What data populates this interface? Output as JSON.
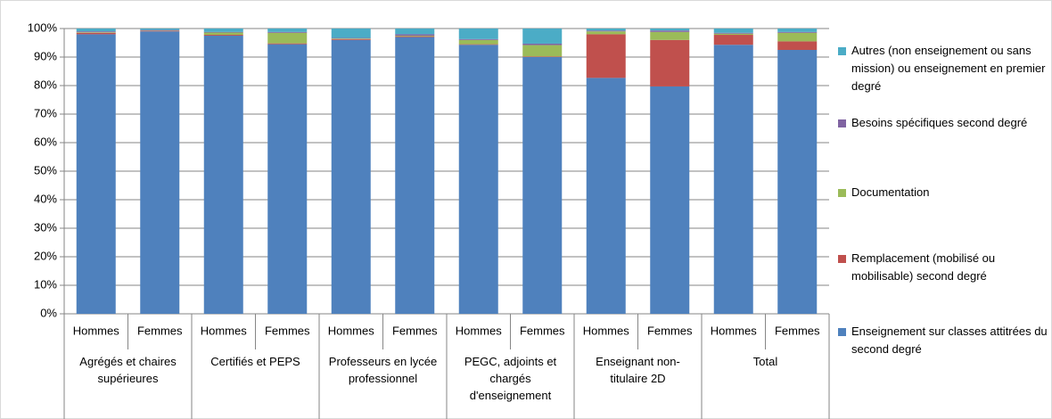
{
  "chart_data": {
    "type": "stacked_bar",
    "categories": [
      "Hommes",
      "Femmes",
      "Hommes",
      "Femmes",
      "Hommes",
      "Femmes",
      "Hommes",
      "Femmes",
      "Hommes",
      "Femmes",
      "Hommes",
      "Femmes"
    ],
    "groups": [
      "Agrégés et chaires supérieures",
      "Certifiés et PEPS",
      "Professeurs en lycée professionnel",
      "PEGC, adjoints et chargés d'enseignement",
      "Enseignant non-titulaire 2D",
      "Total"
    ],
    "series": [
      {
        "name": "Enseignement sur classes attitrées du second degré",
        "color": "#4f81bd",
        "values": [
          98,
          99,
          97.5,
          94.5,
          96,
          97,
          94.3,
          90,
          82.7,
          79.7,
          94.3,
          92.5
        ]
      },
      {
        "name": "Remplacement (mobilisé ou mobilisable) second degré",
        "color": "#c0504d",
        "values": [
          0.5,
          0.2,
          0.3,
          0.3,
          0.3,
          0.3,
          0.2,
          0.2,
          15.3,
          16.3,
          3.5,
          3
        ]
      },
      {
        "name": "Documentation",
        "color": "#9bbb59",
        "values": [
          0.2,
          0.1,
          0.8,
          3.7,
          0.2,
          0.2,
          1.5,
          4,
          1,
          2.8,
          0.4,
          3
        ]
      },
      {
        "name": "Besoins spécifiques second degré",
        "color": "#8064a2",
        "values": [
          0.3,
          0.2,
          0.2,
          0.3,
          0.2,
          0.5,
          0.3,
          0.5,
          0.3,
          0.5,
          0.3,
          0.3
        ]
      },
      {
        "name": "Autres (non enseignement ou sans mission) ou enseignement en premier degré",
        "color": "#4bacc6",
        "values": [
          1,
          0.5,
          1.2,
          1.2,
          3.3,
          2,
          3.7,
          5.3,
          0.7,
          0.7,
          1.5,
          1.2
        ]
      }
    ],
    "ylim": [
      0,
      100
    ],
    "yticks": [
      {
        "value": 0,
        "label": "0%"
      },
      {
        "value": 10,
        "label": "10%"
      },
      {
        "value": 20,
        "label": "20%"
      },
      {
        "value": 30,
        "label": "30%"
      },
      {
        "value": 40,
        "label": "40%"
      },
      {
        "value": 50,
        "label": "50%"
      },
      {
        "value": 60,
        "label": "60%"
      },
      {
        "value": 70,
        "label": "70%"
      },
      {
        "value": 80,
        "label": "80%"
      },
      {
        "value": 90,
        "label": "90%"
      },
      {
        "value": 100,
        "label": "100%"
      }
    ],
    "grid": true,
    "legend": "right"
  }
}
